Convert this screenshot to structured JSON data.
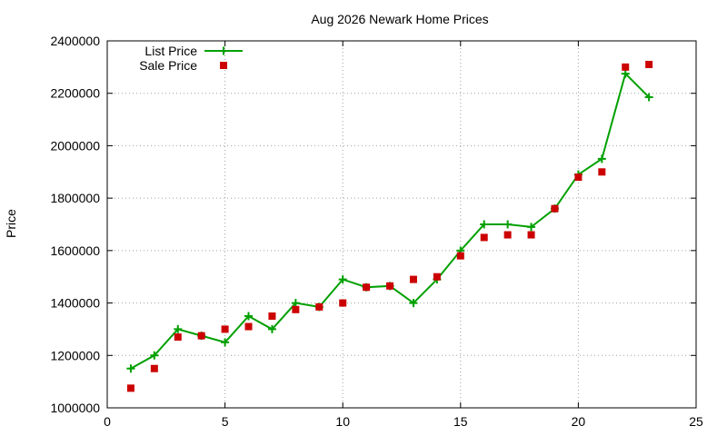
{
  "chart_data": {
    "type": "line",
    "title": "Aug 2026 Newark Home Prices",
    "xlabel": "",
    "ylabel": "Price",
    "xlim": [
      0,
      25
    ],
    "ylim": [
      1000000,
      2400000
    ],
    "xticks": [
      0,
      5,
      10,
      15,
      20,
      25
    ],
    "yticks": [
      1000000,
      1200000,
      1400000,
      1600000,
      1800000,
      2000000,
      2200000,
      2400000
    ],
    "grid": true,
    "legend": "top-left",
    "series": [
      {
        "name": "List Price",
        "style": "line+plus",
        "color": "#00a000",
        "x": [
          1,
          2,
          3,
          4,
          5,
          6,
          7,
          8,
          9,
          10,
          11,
          12,
          13,
          14,
          15,
          16,
          17,
          18,
          19,
          20,
          21,
          22,
          23
        ],
        "values": [
          1150000,
          1200000,
          1300000,
          1275000,
          1250000,
          1350000,
          1300000,
          1400000,
          1385000,
          1490000,
          1460000,
          1465000,
          1400000,
          1490000,
          1600000,
          1700000,
          1700000,
          1690000,
          1760000,
          1890000,
          1950000,
          2275000,
          2185000
        ]
      },
      {
        "name": "Sale Price",
        "style": "square",
        "color": "#cc0000",
        "x": [
          1,
          2,
          3,
          4,
          5,
          6,
          7,
          8,
          9,
          10,
          11,
          12,
          13,
          14,
          15,
          16,
          17,
          18,
          19,
          20,
          21,
          22,
          23
        ],
        "values": [
          1075000,
          1150000,
          1270000,
          1275000,
          1300000,
          1310000,
          1350000,
          1375000,
          1385000,
          1400000,
          1460000,
          1465000,
          1490000,
          1500000,
          1580000,
          1650000,
          1660000,
          1660000,
          1760000,
          1880000,
          1900000,
          2300000,
          2310000
        ]
      }
    ]
  }
}
